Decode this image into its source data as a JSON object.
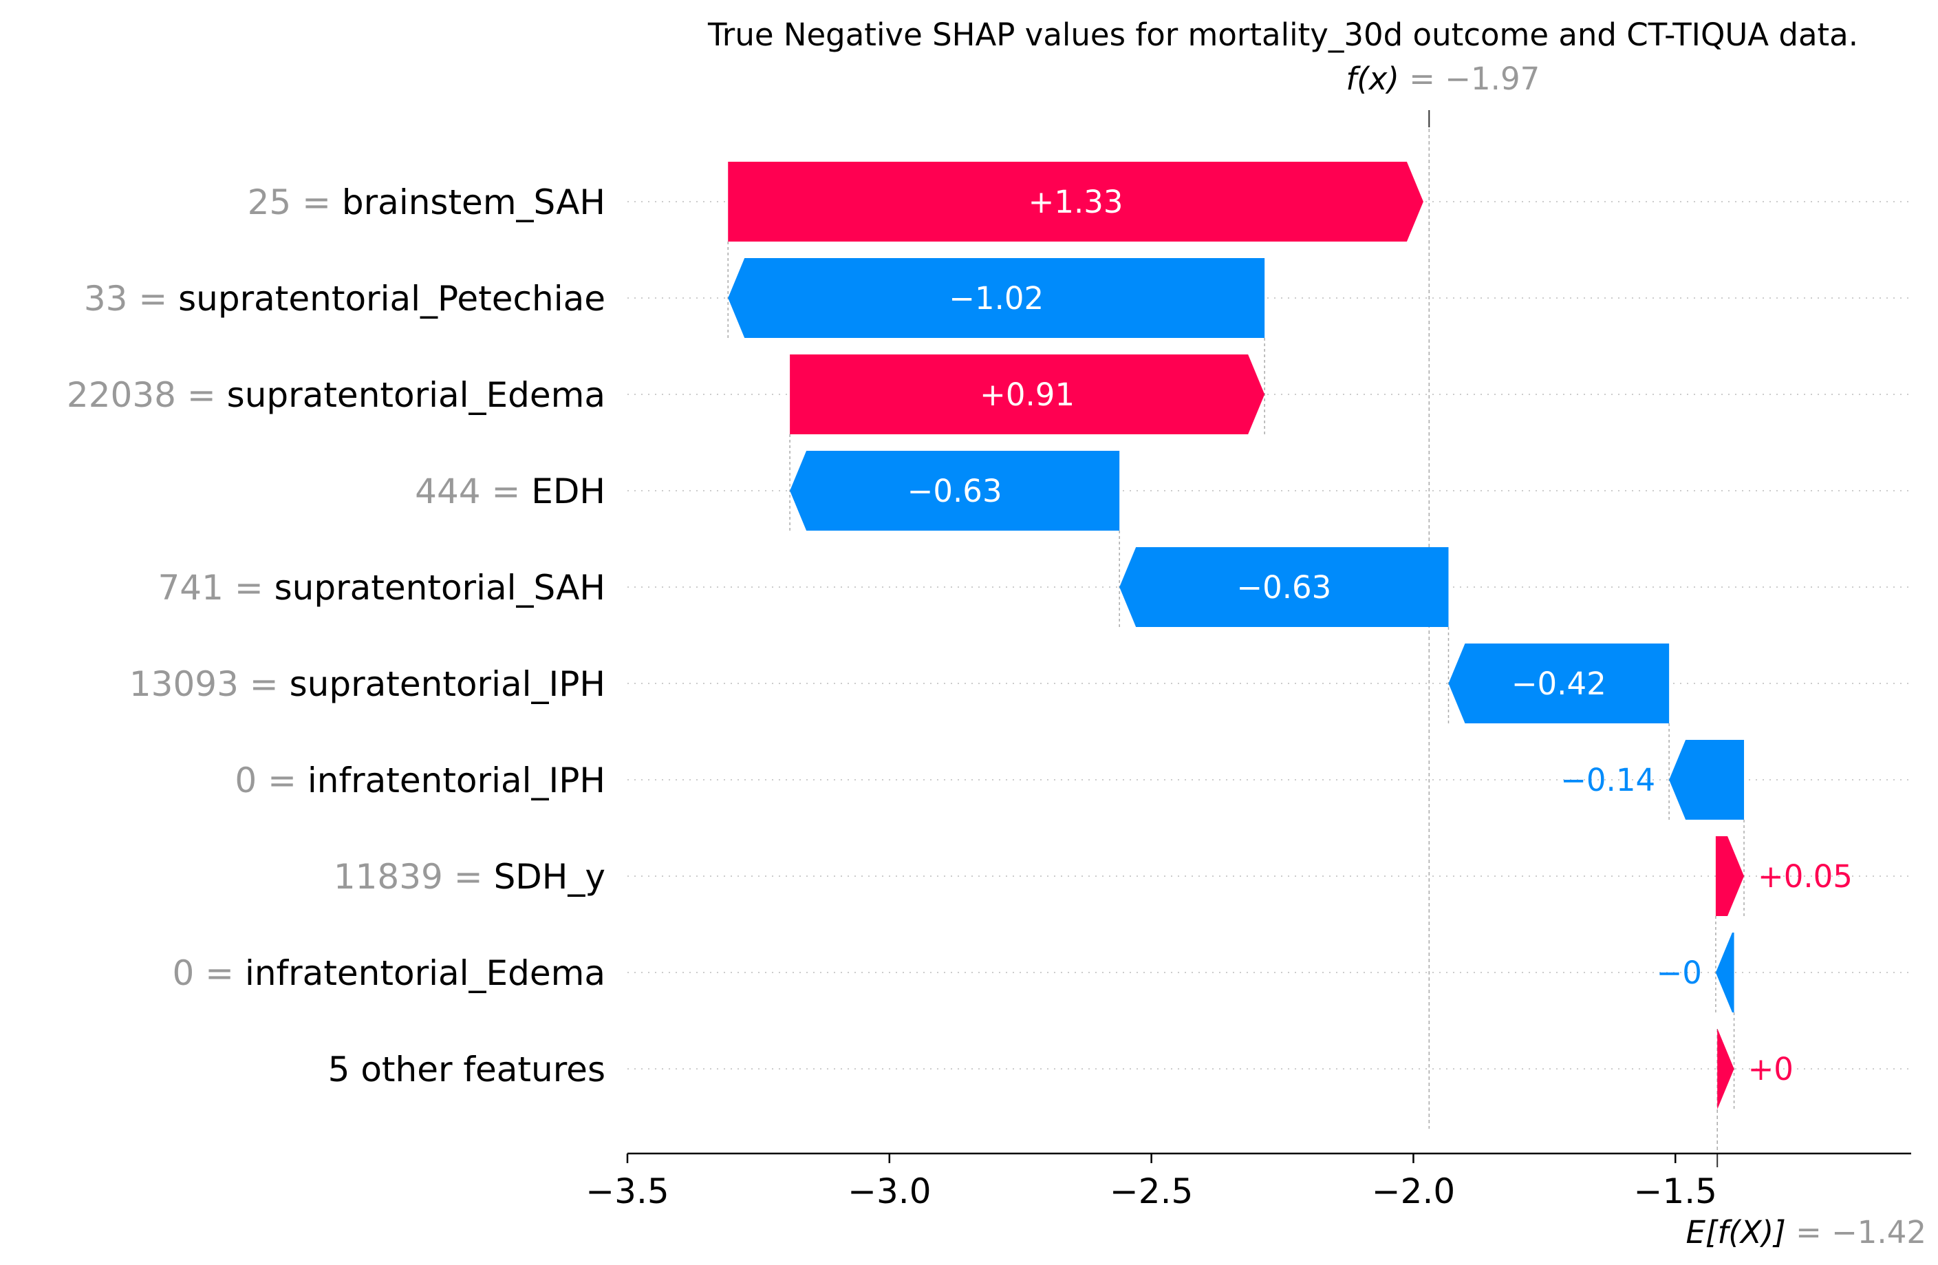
{
  "chart_data": {
    "type": "waterfall",
    "title": "True Negative SHAP values for mortality_30d outcome and CT-TIQUA data.",
    "fx_label": "f(x)",
    "fx_value_text": " = −1.97",
    "fx": -1.97,
    "efx_label": "E[f(X)]",
    "efx_value_text": " = −1.42",
    "efx": -1.42,
    "xlim": [
      -3.5,
      -1.05
    ],
    "xticks": [
      {
        "value": -3.5,
        "label": "−3.5"
      },
      {
        "value": -3.0,
        "label": "−3.0"
      },
      {
        "value": -2.5,
        "label": "−2.5"
      },
      {
        "value": -2.0,
        "label": "−2.0"
      },
      {
        "value": -1.5,
        "label": "−1.5"
      }
    ],
    "colors": {
      "positive": "#ff0051",
      "negative": "#008bfb",
      "feature_value": "#999999",
      "guide": "#aaaaaa"
    },
    "features": [
      {
        "value_text": "25",
        "name": "brainstem_SAH",
        "shap": 1.327,
        "label": "+1.33"
      },
      {
        "value_text": "33",
        "name": "supratentorial_Petechiae",
        "shap": -1.024,
        "label": "−1.02"
      },
      {
        "value_text": "22038",
        "name": "supratentorial_Edema",
        "shap": 0.906,
        "label": "+0.91"
      },
      {
        "value_text": "444",
        "name": "EDH",
        "shap": -0.629,
        "label": "−0.63"
      },
      {
        "value_text": "741",
        "name": "supratentorial_SAH",
        "shap": -0.628,
        "label": "−0.63"
      },
      {
        "value_text": "13093",
        "name": "supratentorial_IPH",
        "shap": -0.421,
        "label": "−0.42"
      },
      {
        "value_text": "0",
        "name": "infratentorial_IPH",
        "shap": -0.143,
        "label": "−0.14"
      },
      {
        "value_text": "11839",
        "name": "SDH_y",
        "shap": 0.054,
        "label": "+0.05"
      },
      {
        "value_text": "0",
        "name": "infratentorial_Edema",
        "shap": -0.035,
        "label": "−0"
      },
      {
        "value_text": "",
        "name": "5 other features",
        "shap": 0.032,
        "label": "+0"
      }
    ]
  }
}
